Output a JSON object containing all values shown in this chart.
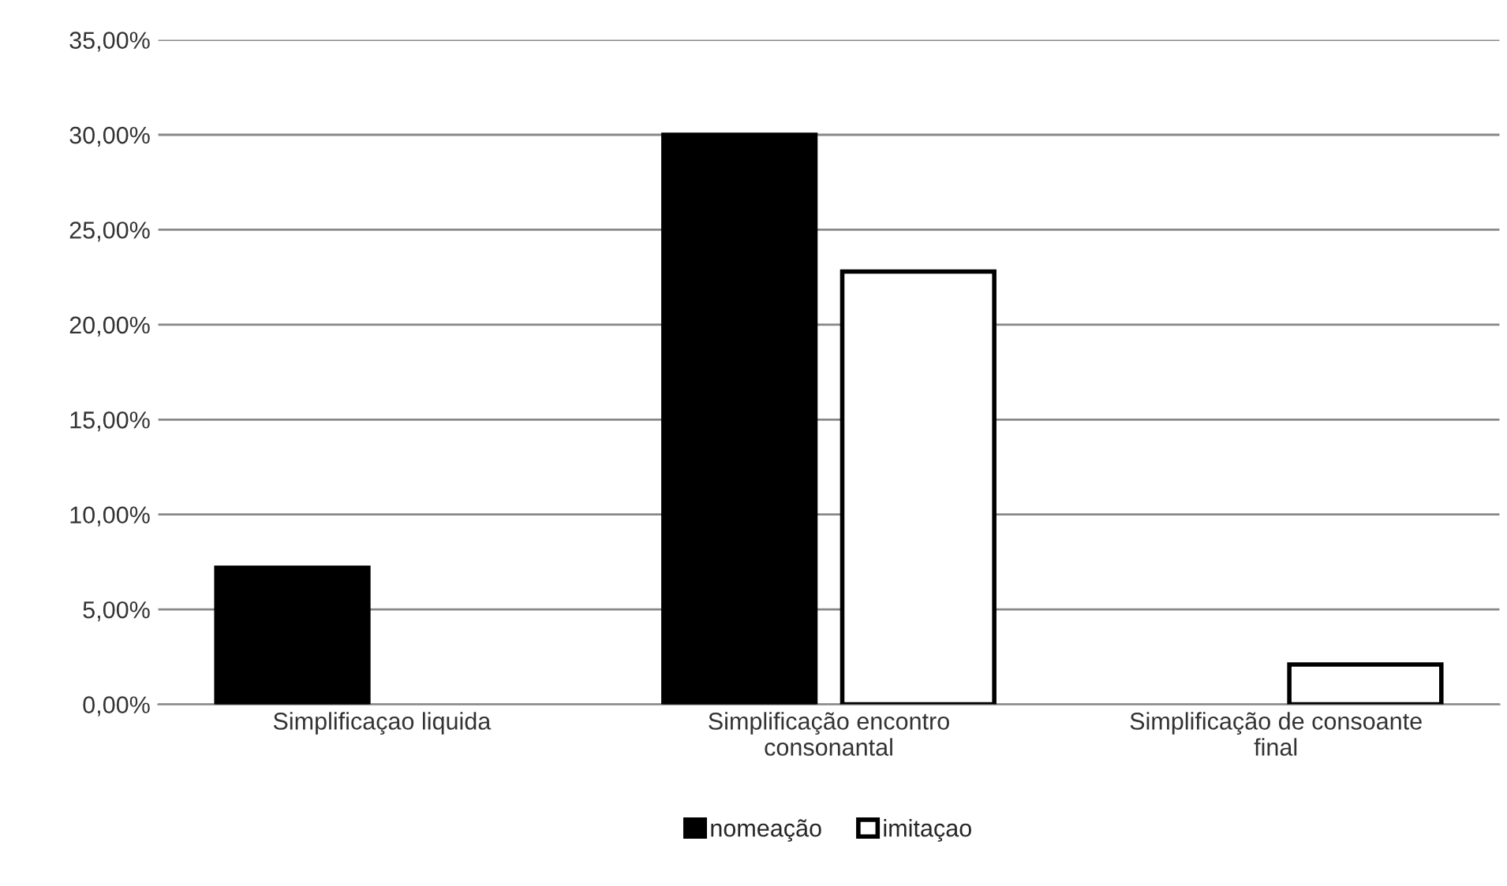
{
  "chart_data": {
    "type": "bar",
    "categories": [
      "Simplificaçao liquida",
      "Simplificação encontro\nconsonantal",
      "Simplificação de consoante\nfinal"
    ],
    "series": [
      {
        "name": "nomeação",
        "color": "#000000",
        "values": [
          7.2,
          30.0,
          null
        ]
      },
      {
        "name": "imitaçao",
        "color": "#ffffff",
        "values": [
          null,
          22.8,
          2.1
        ]
      }
    ],
    "ylim": [
      0,
      35
    ],
    "yticks": [
      {
        "value": 0,
        "label": "0,00%"
      },
      {
        "value": 5,
        "label": "5,00%"
      },
      {
        "value": 10,
        "label": "10,00%"
      },
      {
        "value": 15,
        "label": "15,00%"
      },
      {
        "value": 20,
        "label": "20,00%"
      },
      {
        "value": 25,
        "label": "25,00%"
      },
      {
        "value": 30,
        "label": "30,00%"
      },
      {
        "value": 35,
        "label": "35,00%"
      }
    ],
    "grid": "y",
    "legend": "bottom"
  }
}
